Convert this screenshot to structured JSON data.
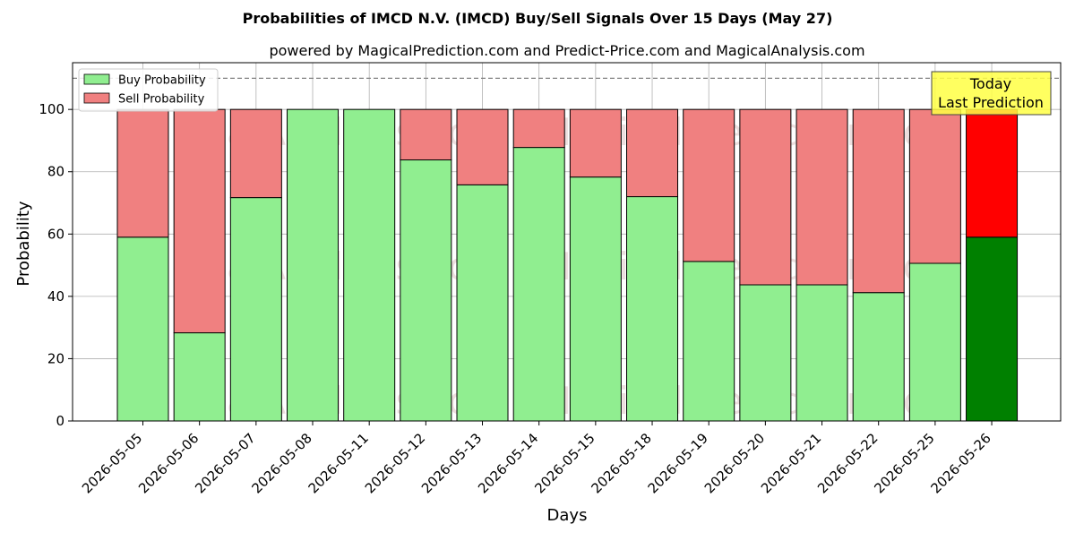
{
  "chart_data": {
    "type": "bar",
    "stacked": true,
    "title": "Probabilities of IMCD N.V. (IMCD) Buy/Sell Signals Over 15 Days (May 27)",
    "subtitle": "powered by MagicalPrediction.com and Predict-Price.com and MagicalAnalysis.com",
    "xlabel": "Days",
    "ylabel": "Probability",
    "ylim": [
      0,
      115
    ],
    "yticks": [
      0,
      20,
      40,
      60,
      80,
      100
    ],
    "grid": true,
    "legend_position": "top-left",
    "reference_line": {
      "y": 110,
      "style": "dashed"
    },
    "categories": [
      "2026-05-05",
      "2026-05-06",
      "2026-05-07",
      "2026-05-08",
      "2026-05-11",
      "2026-05-12",
      "2026-05-13",
      "2026-05-14",
      "2026-05-15",
      "2026-05-18",
      "2026-05-19",
      "2026-05-20",
      "2026-05-21",
      "2026-05-22",
      "2026-05-25",
      "2026-05-26"
    ],
    "series": [
      {
        "name": "Buy Probability",
        "color": "#90ee90",
        "highlight_color": "#008000",
        "values": [
          59,
          28.3,
          71.7,
          100,
          100,
          83.8,
          75.8,
          87.8,
          78.3,
          72,
          51.2,
          43.7,
          43.7,
          41.2,
          50.6,
          59
        ]
      },
      {
        "name": "Sell Probability",
        "color": "#f08080",
        "highlight_color": "#ff0000",
        "values": [
          41,
          71.7,
          28.3,
          0,
          0,
          16.2,
          24.2,
          12.2,
          21.7,
          28,
          48.8,
          56.3,
          56.3,
          58.8,
          49.4,
          41
        ]
      }
    ],
    "annotation": {
      "lines": [
        "Today",
        "Last Prediction"
      ],
      "color": "#ffff44",
      "target": "2026-05-26"
    },
    "watermarks": [
      "MagicalAnalysis.com",
      "MagicalPrediction.com"
    ]
  }
}
